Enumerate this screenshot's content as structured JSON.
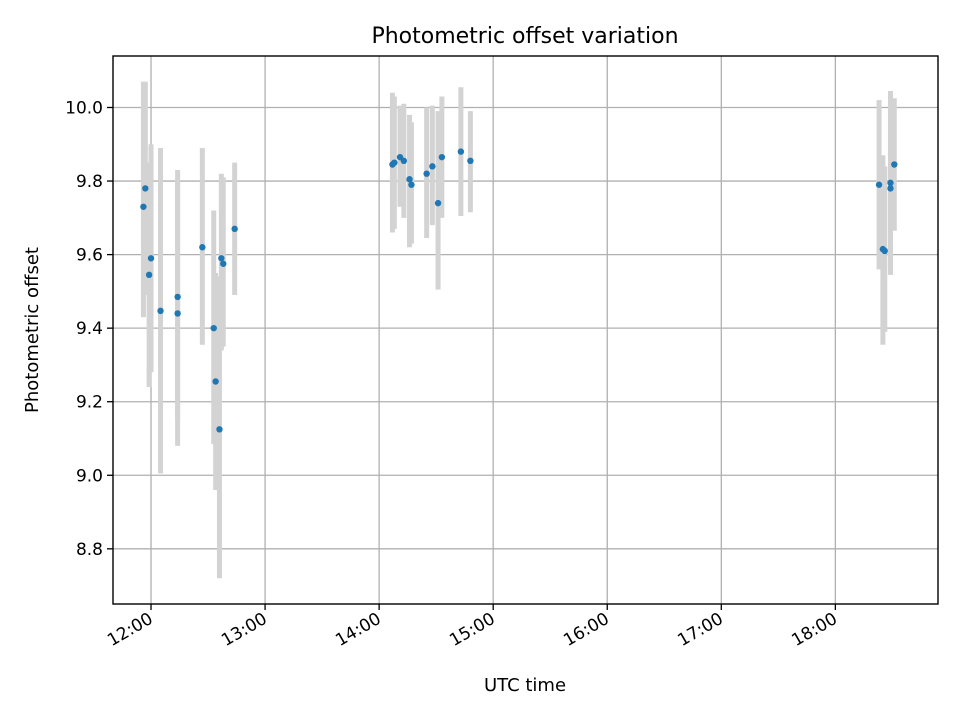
{
  "chart_data": {
    "type": "scatter",
    "title": "Photometric offset variation",
    "xlabel": "UTC time",
    "ylabel": "Photometric offset",
    "x_ticks": [
      "12:00",
      "13:00",
      "14:00",
      "15:00",
      "16:00",
      "17:00",
      "18:00"
    ],
    "y_ticks": [
      "8.8",
      "9.0",
      "9.2",
      "9.4",
      "9.6",
      "9.8",
      "10.0"
    ],
    "xlim": [
      "11:40",
      "18:54"
    ],
    "ylim": [
      8.65,
      10.14
    ],
    "grid": true,
    "error_bar_color": "#d3d3d3",
    "marker_color": "#1f77b4",
    "series": [
      {
        "points": [
          {
            "x": "11:56",
            "y": 9.73,
            "yerr_low": 9.43,
            "yerr_high": 10.07
          },
          {
            "x": "11:57",
            "y": 9.78,
            "yerr_low": 9.49,
            "yerr_high": 10.07
          },
          {
            "x": "11:59",
            "y": 9.545,
            "yerr_low": 9.24,
            "yerr_high": 9.85
          },
          {
            "x": "12:00",
            "y": 9.59,
            "yerr_low": 9.28,
            "yerr_high": 9.9
          },
          {
            "x": "12:05",
            "y": 9.447,
            "yerr_low": 9.005,
            "yerr_high": 9.89
          },
          {
            "x": "12:14",
            "y": 9.485,
            "yerr_low": 9.15,
            "yerr_high": 9.83
          },
          {
            "x": "12:14",
            "y": 9.44,
            "yerr_low": 9.08,
            "yerr_high": 9.8
          },
          {
            "x": "12:27",
            "y": 9.62,
            "yerr_low": 9.355,
            "yerr_high": 9.89
          },
          {
            "x": "12:33",
            "y": 9.4,
            "yerr_low": 9.085,
            "yerr_high": 9.72
          },
          {
            "x": "12:34",
            "y": 9.255,
            "yerr_low": 8.96,
            "yerr_high": 9.55
          },
          {
            "x": "12:36",
            "y": 9.125,
            "yerr_low": 8.72,
            "yerr_high": 9.54
          },
          {
            "x": "12:37",
            "y": 9.59,
            "yerr_low": 9.34,
            "yerr_high": 9.82
          },
          {
            "x": "12:38",
            "y": 9.575,
            "yerr_low": 9.35,
            "yerr_high": 9.81
          },
          {
            "x": "12:44",
            "y": 9.67,
            "yerr_low": 9.49,
            "yerr_high": 9.85
          },
          {
            "x": "14:07",
            "y": 9.845,
            "yerr_low": 9.66,
            "yerr_high": 10.04
          },
          {
            "x": "14:08",
            "y": 9.85,
            "yerr_low": 9.67,
            "yerr_high": 10.03
          },
          {
            "x": "14:11",
            "y": 9.865,
            "yerr_low": 9.73,
            "yerr_high": 10.005
          },
          {
            "x": "14:13",
            "y": 9.855,
            "yerr_low": 9.7,
            "yerr_high": 10.01
          },
          {
            "x": "14:16",
            "y": 9.805,
            "yerr_low": 9.62,
            "yerr_high": 9.98
          },
          {
            "x": "14:17",
            "y": 9.79,
            "yerr_low": 9.63,
            "yerr_high": 9.96
          },
          {
            "x": "14:25",
            "y": 9.82,
            "yerr_low": 9.645,
            "yerr_high": 10.0
          },
          {
            "x": "14:28",
            "y": 9.84,
            "yerr_low": 9.68,
            "yerr_high": 10.005
          },
          {
            "x": "14:31",
            "y": 9.74,
            "yerr_low": 9.505,
            "yerr_high": 9.99
          },
          {
            "x": "14:33",
            "y": 9.865,
            "yerr_low": 9.7,
            "yerr_high": 10.03
          },
          {
            "x": "14:43",
            "y": 9.88,
            "yerr_low": 9.705,
            "yerr_high": 10.055
          },
          {
            "x": "14:48",
            "y": 9.855,
            "yerr_low": 9.715,
            "yerr_high": 9.99
          },
          {
            "x": "18:23",
            "y": 9.79,
            "yerr_low": 9.56,
            "yerr_high": 10.02
          },
          {
            "x": "18:25",
            "y": 9.615,
            "yerr_low": 9.355,
            "yerr_high": 9.87
          },
          {
            "x": "18:26",
            "y": 9.61,
            "yerr_low": 9.39,
            "yerr_high": 9.84
          },
          {
            "x": "18:29",
            "y": 9.795,
            "yerr_low": 9.6,
            "yerr_high": 10.005
          },
          {
            "x": "18:29",
            "y": 9.78,
            "yerr_low": 9.545,
            "yerr_high": 10.045
          },
          {
            "x": "18:31",
            "y": 9.845,
            "yerr_low": 9.665,
            "yerr_high": 10.025
          }
        ]
      }
    ]
  }
}
